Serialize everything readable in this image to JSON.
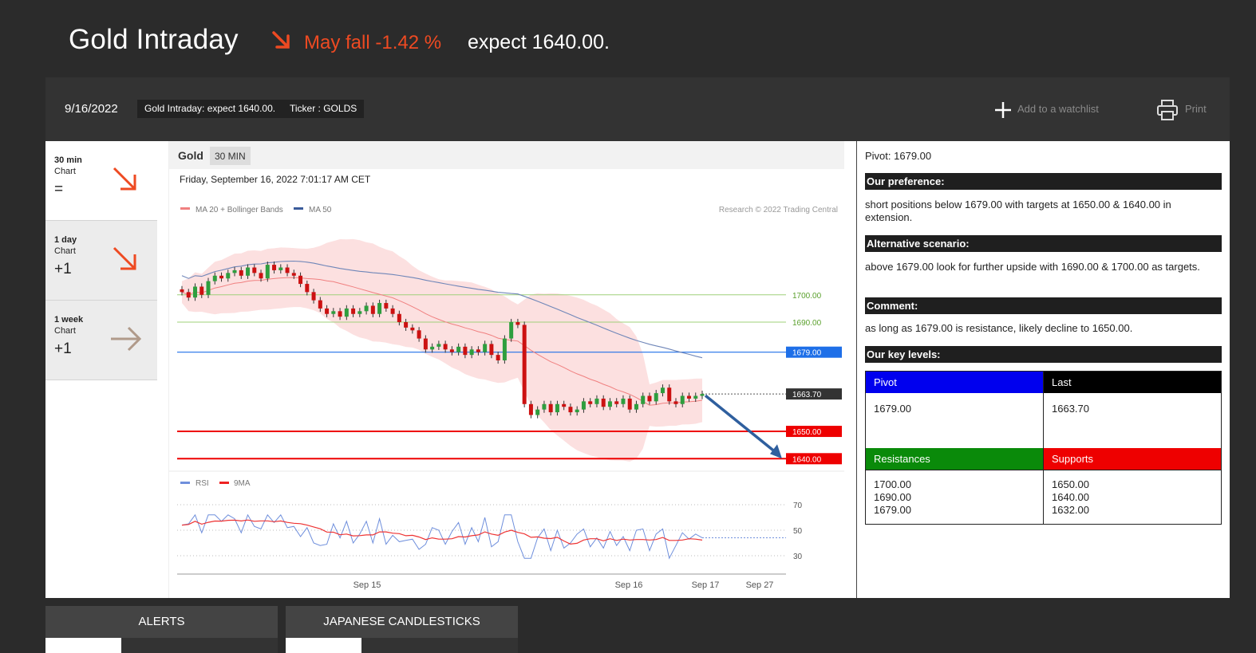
{
  "header": {
    "title": "Gold Intraday",
    "fall_text": "May fall -1.42 %",
    "expect_text": "expect 1640.00."
  },
  "toolbar": {
    "date": "9/16/2022",
    "pill_title": "Gold Intraday: expect 1640.00.",
    "pill_ticker": "Ticker : GOLDS",
    "add_watchlist": "Add to a watchlist",
    "print": "Print"
  },
  "timeframes": [
    {
      "name": "30 min",
      "chart": "Chart",
      "score": "=",
      "arrow": "down"
    },
    {
      "name": "1 day",
      "chart": "Chart",
      "score": "+1",
      "arrow": "down"
    },
    {
      "name": "1 week",
      "chart": "Chart",
      "score": "+1",
      "arrow": "right"
    }
  ],
  "colors": {
    "down_arrow": "#ee4a22",
    "neutral_arrow": "#b09a8a",
    "bull": "#2e9e3e",
    "bear": "#cc1111",
    "pivot": "#1e6fe8",
    "support": "#ee0000",
    "resistance": "#9fd07a"
  },
  "chart_data": {
    "type": "candlestick",
    "title": "Gold",
    "interval": "30 MIN",
    "timestamp": "Friday, September 16, 2022 7:01:17 AM CET",
    "legend": [
      "MA 20 + Bollinger Bands",
      "MA 50"
    ],
    "copyright": "Research © 2022 Trading Central",
    "price_levels": [
      {
        "label": "1700.00",
        "value": 1700.0,
        "kind": "resistance"
      },
      {
        "label": "1690.00",
        "value": 1690.0,
        "kind": "resistance"
      },
      {
        "label": "1679.00",
        "value": 1679.0,
        "kind": "pivot"
      },
      {
        "label": "1663.70",
        "value": 1663.7,
        "kind": "last"
      },
      {
        "label": "1650.00",
        "value": 1650.0,
        "kind": "support"
      },
      {
        "label": "1640.00",
        "value": 1640.0,
        "kind": "support"
      }
    ],
    "ylim": [
      1636,
      1730
    ],
    "closes": [
      1701,
      1699,
      1703,
      1700,
      1705,
      1707,
      1706,
      1708,
      1709,
      1707,
      1710,
      1708,
      1706,
      1711,
      1709,
      1710,
      1708,
      1707,
      1704,
      1701,
      1698,
      1695,
      1693,
      1694,
      1692,
      1695,
      1693,
      1694,
      1696,
      1693,
      1697,
      1695,
      1693,
      1690,
      1688,
      1687,
      1684,
      1680,
      1681,
      1682,
      1680,
      1679,
      1681,
      1678,
      1680,
      1679,
      1682,
      1678,
      1676,
      1684,
      1690,
      1689,
      1660,
      1656,
      1658,
      1660,
      1657,
      1660,
      1659,
      1657,
      1658,
      1661,
      1660,
      1662,
      1659,
      1661,
      1660,
      1662,
      1658,
      1660,
      1663,
      1661,
      1664,
      1666,
      1661,
      1660,
      1663,
      1662,
      1663,
      1663.7
    ],
    "rsi_series": [
      "RSI",
      "9MA"
    ],
    "rsi_ticks": [
      "70",
      "50",
      "30"
    ],
    "x_ticks": [
      "Sep 15",
      "Sep 16",
      "Sep 17",
      "Sep 27"
    ]
  },
  "analysis": {
    "pivot_line": "Pivot: 1679.00",
    "pref_title": "Our preference:",
    "pref_text": "short positions below 1679.00 with targets at 1650.00 & 1640.00 in extension.",
    "alt_title": "Alternative scenario:",
    "alt_text": "above 1679.00 look for further upside with 1690.00 & 1700.00 as targets.",
    "comment_title": "Comment:",
    "comment_text": "as long as 1679.00 is resistance, likely decline to 1650.00.",
    "key_title": "Our key levels:",
    "pivot_head": "Pivot",
    "last_head": "Last",
    "pivot_val": "1679.00",
    "last_val": "1663.70",
    "res_head": "Resistances",
    "sup_head": "Supports",
    "res_vals": "1700.00\n1690.00\n1679.00",
    "sup_vals": "1650.00\n1640.00\n1632.00"
  },
  "tabs": [
    "ALERTS",
    "JAPANESE CANDLESTICKS"
  ]
}
